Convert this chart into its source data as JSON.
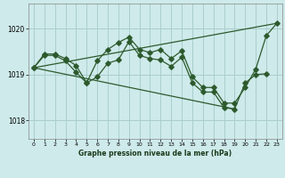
{
  "title": "Graphe pression niveau de la mer (hPa)",
  "background_color": "#ceeaea",
  "grid_color": "#aacece",
  "line_color": "#2d5a2d",
  "xlim": [
    -0.5,
    23.5
  ],
  "ylim": [
    1017.6,
    1020.55
  ],
  "yticks": [
    1018,
    1019,
    1020
  ],
  "xticks": [
    0,
    1,
    2,
    3,
    4,
    5,
    6,
    7,
    8,
    9,
    10,
    11,
    12,
    13,
    14,
    15,
    16,
    17,
    18,
    19,
    20,
    21,
    22,
    23
  ],
  "series": {
    "line1_x": [
      0,
      1,
      2,
      3,
      4,
      5,
      6,
      7,
      8,
      9,
      10,
      11,
      12,
      13,
      14,
      15,
      16,
      17,
      18,
      19,
      20,
      21,
      22,
      23
    ],
    "line1_y": [
      1019.15,
      1019.45,
      1019.45,
      1019.35,
      1019.2,
      1018.82,
      1019.3,
      1019.55,
      1019.7,
      1019.82,
      1019.55,
      1019.48,
      1019.55,
      1019.35,
      1019.52,
      1018.95,
      1018.72,
      1018.72,
      1018.38,
      1018.38,
      1018.72,
      1019.12,
      1019.85,
      1020.12
    ],
    "line2_x": [
      0,
      1,
      2,
      3,
      4,
      5,
      6,
      7,
      8,
      9,
      10,
      11,
      12,
      13,
      14,
      15,
      16,
      17,
      18,
      19,
      20,
      21,
      22
    ],
    "line2_y": [
      1019.15,
      1019.42,
      1019.42,
      1019.3,
      1019.05,
      1018.82,
      1018.95,
      1019.25,
      1019.32,
      1019.72,
      1019.42,
      1019.35,
      1019.32,
      1019.18,
      1019.38,
      1018.82,
      1018.62,
      1018.62,
      1018.28,
      1018.25,
      1018.82,
      1019.0,
      1019.02
    ],
    "line3_x": [
      0,
      23
    ],
    "line3_y": [
      1019.15,
      1020.12
    ],
    "line4_x": [
      0,
      19
    ],
    "line4_y": [
      1019.15,
      1018.25
    ]
  }
}
